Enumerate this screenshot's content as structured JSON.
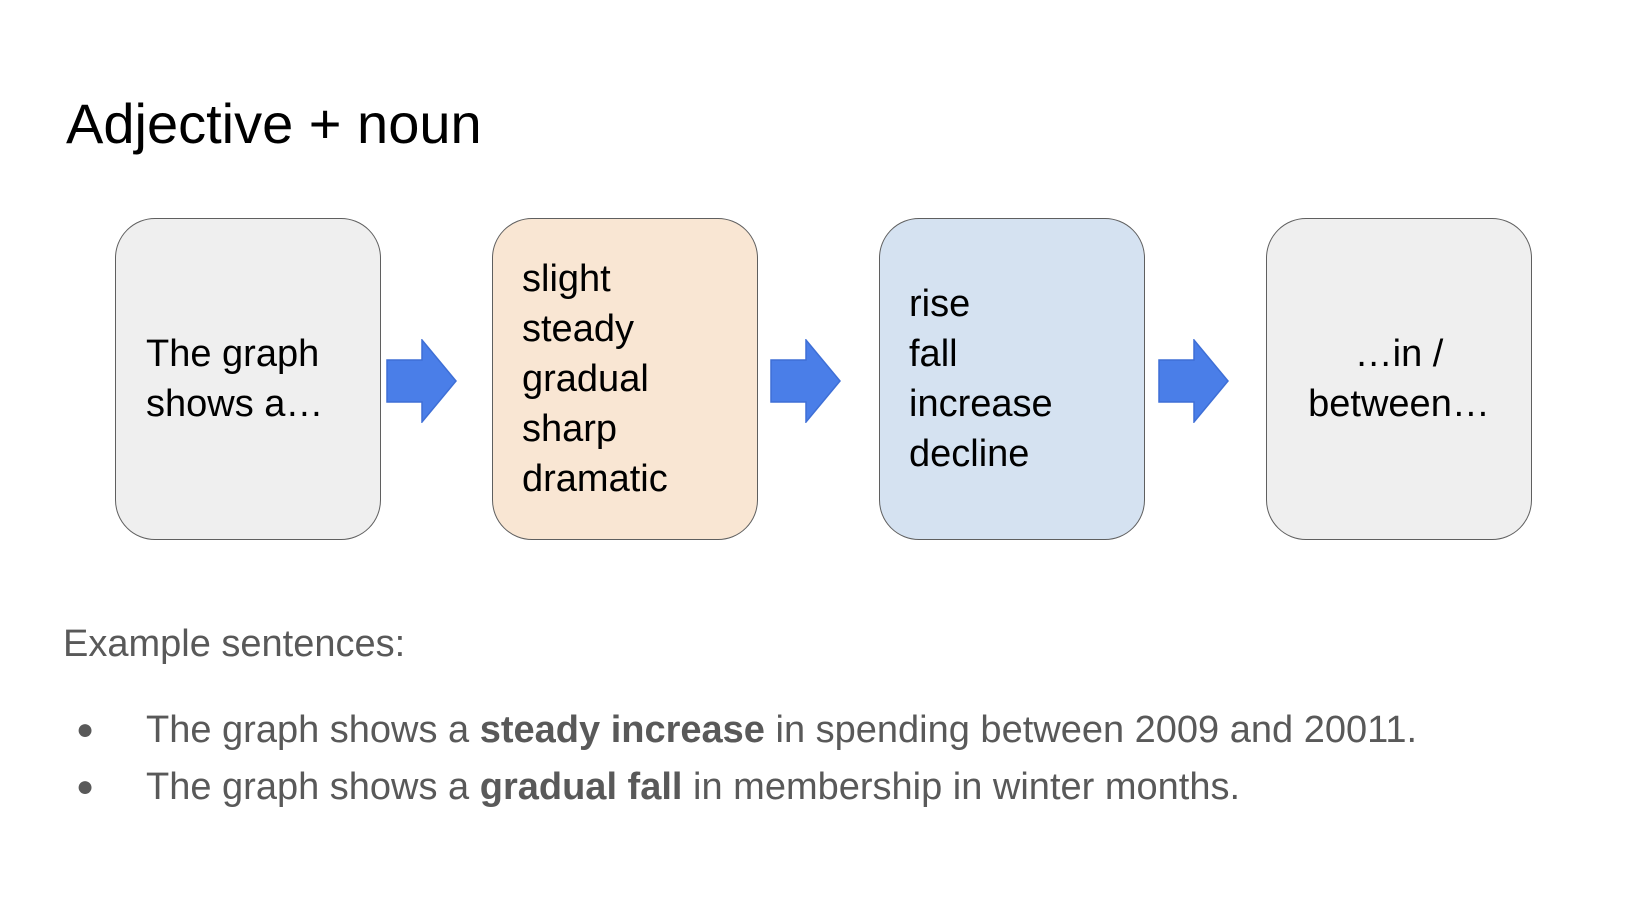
{
  "slide": {
    "title": "Adjective + noun"
  },
  "diagram": {
    "start_box": [
      "The graph",
      "shows a…"
    ],
    "adjectives_box": [
      "slight",
      "steady",
      "gradual",
      "sharp",
      "dramatic"
    ],
    "nouns_box": [
      "rise",
      "fall",
      "increase",
      "decline"
    ],
    "end_box": [
      "…in /",
      "between…"
    ],
    "colors": {
      "start_box": "#efefef",
      "adjectives_box": "#f9e6d3",
      "nouns_box": "#d5e2f1",
      "end_box": "#efefef",
      "arrow": "#4a7ee8"
    }
  },
  "examples": {
    "heading": "Example sentences:",
    "bullet_icon": "bullet-dot",
    "bullet_glyph": "●",
    "items": [
      {
        "before": "The graph shows a ",
        "bold": "steady increase",
        "after": " in spending between 2009 and 20011."
      },
      {
        "before": "The graph shows a ",
        "bold": "gradual fall",
        "after": " in membership in winter months."
      }
    ]
  }
}
